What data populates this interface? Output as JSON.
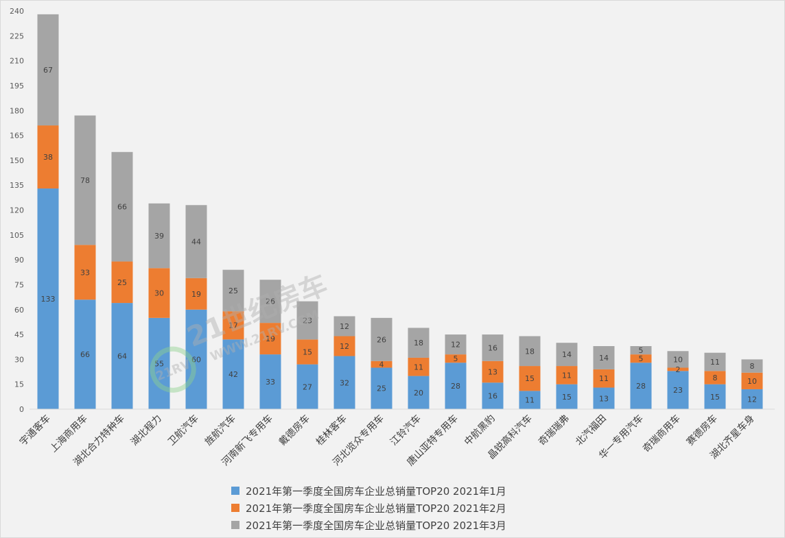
{
  "chart_data": {
    "type": "bar",
    "stacked": true,
    "title": "",
    "xlabel": "",
    "ylabel": "",
    "ylim": [
      0,
      240
    ],
    "yticks": [
      0,
      15,
      30,
      45,
      60,
      75,
      90,
      105,
      120,
      135,
      150,
      165,
      180,
      195,
      210,
      225,
      240
    ],
    "grid": false,
    "legend_position": "bottom",
    "categories": [
      "宇通客车",
      "上海商用车",
      "湖北合力特种车",
      "湖北程力",
      "卫航汽车",
      "旌航汽车",
      "河南新飞专用车",
      "戴德房车",
      "桂林客车",
      "河北览众专用车",
      "江铃汽车",
      "唐山亚特专用车",
      "中航黑豹",
      "晶锐高科汽车",
      "奇瑞瑞弗",
      "北汽福田",
      "华一专用汽车",
      "奇瑞商用车",
      "赛德房车",
      "湖北齐星车身"
    ],
    "series": [
      {
        "name": "2021年第一季度全国房车企业总销量TOP20 2021年1月",
        "color": "#5b9bd5",
        "values": [
          133,
          66,
          64,
          55,
          60,
          42,
          33,
          27,
          32,
          25,
          20,
          28,
          16,
          11,
          15,
          13,
          28,
          23,
          15,
          12
        ]
      },
      {
        "name": "2021年第一季度全国房车企业总销量TOP20 2021年2月",
        "color": "#ed7d31",
        "values": [
          38,
          33,
          25,
          30,
          19,
          17,
          19,
          15,
          12,
          4,
          11,
          5,
          13,
          15,
          11,
          11,
          5,
          2,
          8,
          10
        ]
      },
      {
        "name": "2021年第一季度全国房车企业总销量TOP20 2021年3月",
        "color": "#a5a5a5",
        "values": [
          67,
          78,
          66,
          39,
          44,
          25,
          26,
          23,
          12,
          26,
          18,
          12,
          16,
          18,
          14,
          14,
          5,
          10,
          11,
          8
        ]
      }
    ],
    "watermark": {
      "line1": "21世纪房车",
      "line2": "WWW.21RV.COM",
      "badge": "21RV"
    }
  }
}
